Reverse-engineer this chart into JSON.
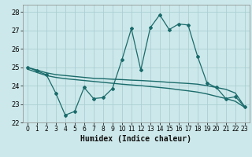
{
  "xlabel": "Humidex (Indice chaleur)",
  "xlim": [
    -0.5,
    23.5
  ],
  "ylim": [
    22,
    28.4
  ],
  "yticks": [
    22,
    23,
    24,
    25,
    26,
    27,
    28
  ],
  "xticks": [
    0,
    1,
    2,
    3,
    4,
    5,
    6,
    7,
    8,
    9,
    10,
    11,
    12,
    13,
    14,
    15,
    16,
    17,
    18,
    19,
    20,
    21,
    22,
    23
  ],
  "bg_color": "#cde8ea",
  "grid_color": "#aacfd4",
  "line_color": "#1a6b6b",
  "line1_x": [
    0,
    1,
    2,
    3,
    4,
    5,
    6,
    7,
    8,
    9,
    10,
    11,
    12,
    13,
    14,
    15,
    16,
    17,
    18,
    19,
    20,
    21,
    22,
    23
  ],
  "line1_y": [
    25.0,
    24.8,
    24.6,
    23.6,
    22.4,
    22.6,
    23.9,
    23.3,
    23.35,
    23.85,
    25.4,
    27.1,
    24.85,
    27.15,
    27.85,
    27.05,
    27.35,
    27.3,
    25.6,
    24.15,
    23.9,
    23.3,
    23.4,
    22.85
  ],
  "line2_x": [
    0,
    1,
    2,
    3,
    4,
    5,
    6,
    7,
    8,
    9,
    10,
    11,
    12,
    13,
    14,
    15,
    16,
    17,
    18,
    19,
    20,
    21,
    22,
    23
  ],
  "line2_y": [
    25.0,
    24.85,
    24.7,
    24.6,
    24.55,
    24.5,
    24.45,
    24.4,
    24.38,
    24.35,
    24.33,
    24.3,
    24.28,
    24.25,
    24.22,
    24.18,
    24.15,
    24.12,
    24.08,
    24.0,
    23.9,
    23.8,
    23.6,
    22.85
  ],
  "line3_x": [
    0,
    1,
    2,
    3,
    4,
    5,
    6,
    7,
    8,
    9,
    10,
    11,
    12,
    13,
    14,
    15,
    16,
    17,
    18,
    19,
    20,
    21,
    22,
    23
  ],
  "line3_y": [
    24.9,
    24.72,
    24.55,
    24.45,
    24.38,
    24.33,
    24.28,
    24.23,
    24.18,
    24.13,
    24.08,
    24.04,
    24.0,
    23.95,
    23.9,
    23.85,
    23.78,
    23.72,
    23.65,
    23.55,
    23.42,
    23.3,
    23.15,
    22.82
  ]
}
